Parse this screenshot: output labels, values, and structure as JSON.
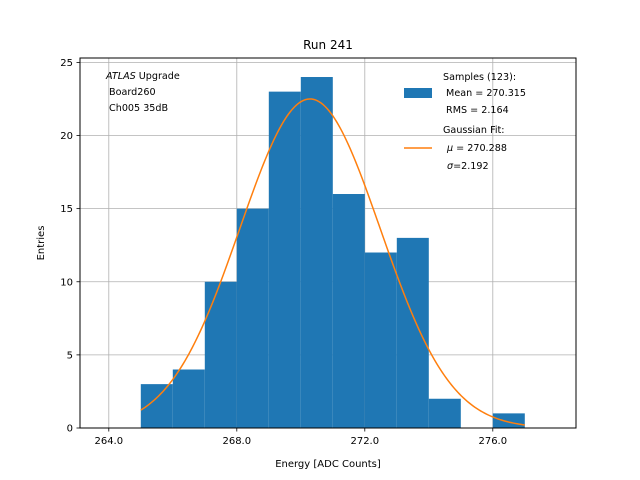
{
  "chart_data": {
    "type": "bar",
    "title": "Run 241",
    "xlabel": "Energy [ADC Counts]",
    "ylabel": "Entries",
    "xlim": [
      263.1,
      278.6
    ],
    "ylim": [
      0,
      25.3
    ],
    "xticks": [
      264.0,
      268.0,
      272.0,
      276.0
    ],
    "xtick_labels": [
      "264.0",
      "268.0",
      "272.0",
      "276.0"
    ],
    "yticks": [
      0,
      5,
      10,
      15,
      20,
      25
    ],
    "ytick_labels": [
      "0",
      "5",
      "10",
      "15",
      "20",
      "25"
    ],
    "grid": true,
    "bin_edges": [
      265,
      266,
      267,
      268,
      269,
      270,
      271,
      272,
      273,
      274,
      275,
      276,
      277
    ],
    "counts": [
      3,
      4,
      10,
      15,
      23,
      24,
      16,
      12,
      13,
      2,
      0,
      1
    ],
    "bar_color": "#1f77b4",
    "fit": {
      "type": "gaussian",
      "mu": 270.288,
      "sigma": 2.192,
      "amplitude": 22.5,
      "x_range": [
        265,
        277
      ],
      "color": "#ff7f0e"
    },
    "annotation_lines": [
      {
        "italic": "ATLAS",
        "rest": " Upgrade"
      },
      {
        "italic": "",
        "rest": " Board260"
      },
      {
        "italic": "",
        "rest": " Ch005 35dB"
      }
    ],
    "legend_position": "upper right",
    "legend": {
      "samples_lines": [
        "Samples (123):",
        " Mean = 270.315",
        " RMS = 2.164"
      ],
      "fit_title": "Gaussian Fit:",
      "fit_mu_symbol": "μ",
      "fit_mu_text": " = 270.288",
      "fit_sigma_symbol": "σ",
      "fit_sigma_text": "=2.192"
    }
  }
}
